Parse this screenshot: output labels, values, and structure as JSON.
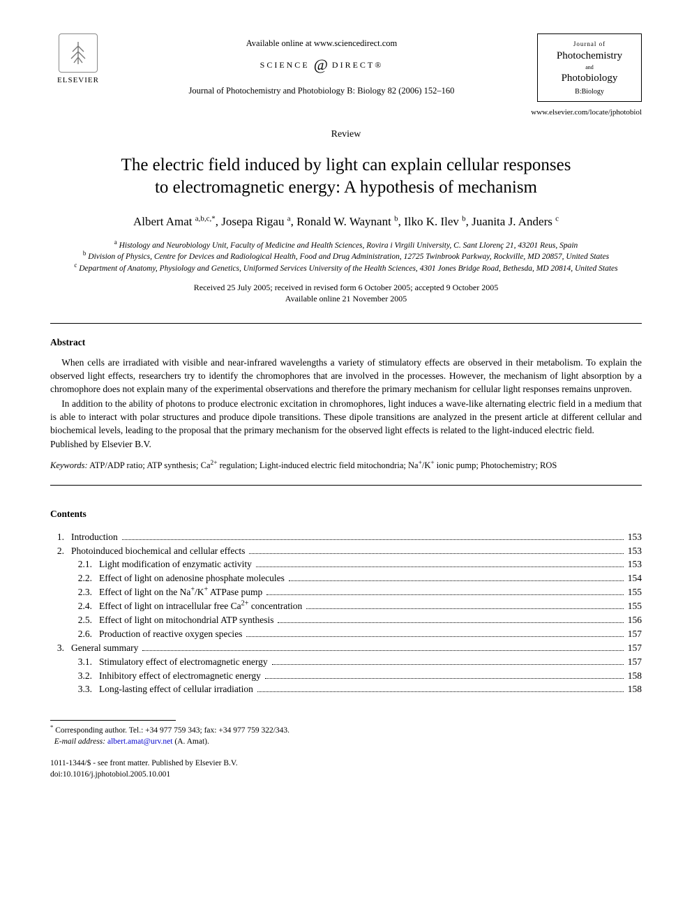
{
  "header": {
    "publisher_name": "ELSEVIER",
    "available_text": "Available online at www.sciencedirect.com",
    "sd_left": "SCIENCE",
    "sd_right": "DIRECT®",
    "journal_ref": "Journal of Photochemistry and Photobiology B: Biology 82 (2006) 152–160",
    "jbox_journalof": "Journal of",
    "jbox_photochem": "Photochemistry",
    "jbox_and": "and",
    "jbox_photobio": "Photobiology",
    "jbox_bbio": "B:Biology",
    "locate_url": "www.elsevier.com/locate/jphotobiol"
  },
  "article": {
    "type_label": "Review",
    "title_l1": "The electric field induced by light can explain cellular responses",
    "title_l2": "to electromagnetic energy: A hypothesis of mechanism",
    "authors_html": "Albert Amat <sup>a,b,c,*</sup>, Josepa Rigau <sup>a</sup>, Ronald W. Waynant <sup>b</sup>, Ilko K. Ilev <sup>b</sup>, Juanita J. Anders <sup>c</sup>",
    "aff_a": "<sup>a</sup> Histology and Neurobiology Unit, Faculty of Medicine and Health Sciences, Rovira i Virgili University, C. Sant Llorenç 21, 43201 Reus, Spain",
    "aff_b": "<sup>b</sup> Division of Physics, Centre for Devices and Radiological Health, Food and Drug Administration, 12725 Twinbrook Parkway, Rockville, MD 20857, United States",
    "aff_c": "<sup>c</sup> Department of Anatomy, Physiology and Genetics, Uniformed Services University of the Health Sciences, 4301 Jones Bridge Road, Bethesda, MD 20814, United States",
    "received": "Received 25 July 2005; received in revised form 6 October 2005; accepted 9 October 2005",
    "available_date": "Available online 21 November 2005"
  },
  "abstract": {
    "heading": "Abstract",
    "p1": "When cells are irradiated with visible and near-infrared wavelengths a variety of stimulatory effects are observed in their metabolism. To explain the observed light effects, researchers try to identify the chromophores that are involved in the processes. However, the mechanism of light absorption by a chromophore does not explain many of the experimental observations and therefore the primary mechanism for cellular light responses remains unproven.",
    "p2": "In addition to the ability of photons to produce electronic excitation in chromophores, light induces a wave-like alternating electric field in a medium that is able to interact with polar structures and produce dipole transitions. These dipole transitions are analyzed in the present article at different cellular and biochemical levels, leading to the proposal that the primary mechanism for the observed light effects is related to the light-induced electric field.",
    "published": "Published by Elsevier B.V.",
    "keywords_label": "Keywords:",
    "keywords": " ATP/ADP ratio; ATP synthesis; Ca<sup>2+</sup> regulation; Light-induced electric field mitochondria; Na<sup>+</sup>/K<sup>+</sup> ionic pump; Photochemistry; ROS"
  },
  "contents": {
    "heading": "Contents",
    "items": [
      {
        "level": 1,
        "num": "1.",
        "title": "Introduction",
        "page": "153"
      },
      {
        "level": 1,
        "num": "2.",
        "title": "Photoinduced biochemical and cellular effects",
        "page": "153"
      },
      {
        "level": 2,
        "num": "2.1.",
        "title": "Light modification of enzymatic activity",
        "page": "153"
      },
      {
        "level": 2,
        "num": "2.2.",
        "title": "Effect of light on adenosine phosphate molecules",
        "page": "154"
      },
      {
        "level": 2,
        "num": "2.3.",
        "title": "Effect of light on the Na<sup>+</sup>/K<sup>+</sup> ATPase pump",
        "page": "155"
      },
      {
        "level": 2,
        "num": "2.4.",
        "title": "Effect of light on intracellular free Ca<sup>2+</sup> concentration",
        "page": "155"
      },
      {
        "level": 2,
        "num": "2.5.",
        "title": "Effect of light on mitochondrial ATP synthesis",
        "page": "156"
      },
      {
        "level": 2,
        "num": "2.6.",
        "title": "Production of reactive oxygen species",
        "page": "157"
      },
      {
        "level": 1,
        "num": "3.",
        "title": "General summary",
        "page": "157"
      },
      {
        "level": 2,
        "num": "3.1.",
        "title": "Stimulatory effect of electromagnetic energy",
        "page": "157"
      },
      {
        "level": 2,
        "num": "3.2.",
        "title": "Inhibitory effect of electromagnetic energy",
        "page": "158"
      },
      {
        "level": 2,
        "num": "3.3.",
        "title": "Long-lasting effect of cellular irradiation",
        "page": "158"
      }
    ]
  },
  "footnote": {
    "corresponding": "Corresponding author. Tel.: +34 977 759 343; fax: +34 977 759 322/343.",
    "email_label": "E-mail address:",
    "email": "albert.amat@urv.net",
    "email_paren": "(A. Amat).",
    "front_matter": "1011-1344/$ - see front matter. Published by Elsevier B.V.",
    "doi": "doi:10.1016/j.jphotobiol.2005.10.001"
  },
  "colors": {
    "text": "#000000",
    "background": "#ffffff",
    "link": "#0000cc",
    "rule": "#000000"
  }
}
